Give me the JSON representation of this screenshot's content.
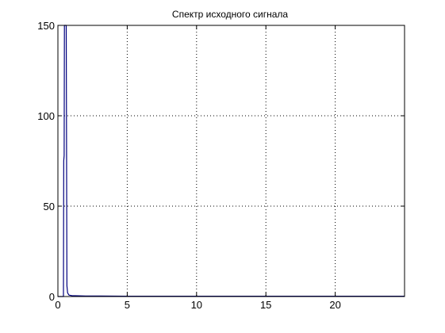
{
  "window": {
    "background": "#ffffff"
  },
  "chart_data": {
    "type": "line",
    "title": "Спектр исходного сигнала",
    "xlabel": "",
    "ylabel": "",
    "xlim": [
      0,
      25
    ],
    "ylim": [
      0,
      150
    ],
    "xticks": [
      0,
      5,
      10,
      15,
      20
    ],
    "yticks": [
      0,
      50,
      100,
      150
    ],
    "xtick_labels": [
      "0",
      "5",
      "10",
      "15",
      "20"
    ],
    "ytick_labels": [
      "0",
      "50",
      "100",
      "150"
    ],
    "grid": true,
    "grid_style": "dotted",
    "legend": false,
    "series": [
      {
        "color": "#00007f",
        "x": [
          0,
          0.3,
          0.35,
          0.4,
          0.42,
          0.45,
          0.47,
          0.5,
          0.52,
          0.55,
          0.6,
          0.65,
          0.7,
          0.8,
          1.0,
          2,
          5,
          10,
          15,
          20,
          25
        ],
        "y": [
          0,
          0,
          0,
          0,
          75,
          78,
          150,
          150,
          150,
          150,
          150,
          6,
          2,
          0.8,
          0.5,
          0.3,
          0.2,
          0.2,
          0.2,
          0.2,
          0.2
        ]
      }
    ]
  }
}
